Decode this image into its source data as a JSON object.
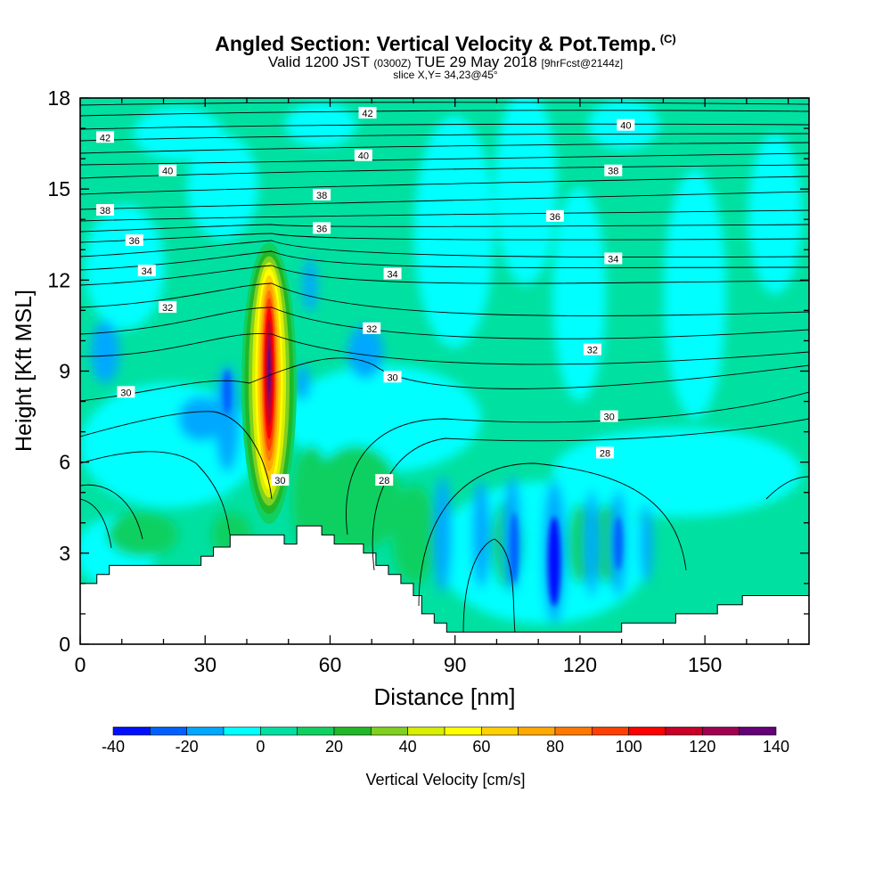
{
  "header": {
    "title": "Angled Section: Vertical Velocity & Pot.Temp.",
    "title_unit": "(C)",
    "valid_prefix": "Valid 1200 JST",
    "valid_utc": "(0300Z)",
    "valid_date": "TUE 29 May 2018",
    "forecast": "[9hrFcst@2144z]",
    "slice": "slice X,Y= 34,23@45°"
  },
  "chart_data": {
    "type": "heatmap",
    "xlabel": "Distance [nm]",
    "ylabel": "Height [Kft MSL]",
    "xlim": [
      0,
      175
    ],
    "ylim": [
      0,
      18
    ],
    "x_ticks": [
      "0",
      "30",
      "60",
      "90",
      "120",
      "150"
    ],
    "x_tick_values": [
      0,
      30,
      60,
      90,
      120,
      150
    ],
    "y_ticks": [
      "0",
      "3",
      "6",
      "9",
      "12",
      "15",
      "18"
    ],
    "y_tick_values": [
      0,
      3,
      6,
      9,
      12,
      15,
      18
    ],
    "colorbar": {
      "label": "Vertical Velocity [cm/s]",
      "labels": [
        "-40",
        "-20",
        "0",
        "20",
        "40",
        "60",
        "80",
        "100",
        "120",
        "140"
      ],
      "label_values": [
        -40,
        -20,
        0,
        20,
        40,
        60,
        80,
        100,
        120,
        140
      ],
      "min": -40,
      "max": 140,
      "step": 10,
      "colors": [
        "#0010ff",
        "#0060ff",
        "#00a8ff",
        "#00ffff",
        "#00e0a0",
        "#10d060",
        "#20b828",
        "#80d020",
        "#d8f000",
        "#ffff00",
        "#ffd000",
        "#ffa800",
        "#ff7800",
        "#ff4000",
        "#ff0000",
        "#c80028",
        "#a00050",
        "#640078"
      ]
    },
    "background_colors": {
      "updraft_light": "#00e0a0",
      "near_zero": "#00ffff"
    },
    "theta_contour_labels": [
      {
        "text": "42",
        "x": 69,
        "y": 17.5
      },
      {
        "text": "42",
        "x": 6,
        "y": 16.7
      },
      {
        "text": "40",
        "x": 68,
        "y": 16.1
      },
      {
        "text": "40",
        "x": 21,
        "y": 15.6
      },
      {
        "text": "40",
        "x": 131,
        "y": 17.1
      },
      {
        "text": "38",
        "x": 128,
        "y": 15.6
      },
      {
        "text": "38",
        "x": 58,
        "y": 14.8
      },
      {
        "text": "38",
        "x": 6,
        "y": 14.3
      },
      {
        "text": "36",
        "x": 58,
        "y": 13.7
      },
      {
        "text": "36",
        "x": 13,
        "y": 13.3
      },
      {
        "text": "36",
        "x": 114,
        "y": 14.1
      },
      {
        "text": "34",
        "x": 16,
        "y": 12.3
      },
      {
        "text": "34",
        "x": 75,
        "y": 12.2
      },
      {
        "text": "34",
        "x": 128,
        "y": 12.7
      },
      {
        "text": "32",
        "x": 21,
        "y": 11.1
      },
      {
        "text": "32",
        "x": 70,
        "y": 10.4
      },
      {
        "text": "32",
        "x": 123,
        "y": 9.7
      },
      {
        "text": "30",
        "x": 11,
        "y": 8.3
      },
      {
        "text": "30",
        "x": 75,
        "y": 8.8
      },
      {
        "text": "30",
        "x": 127,
        "y": 7.5
      },
      {
        "text": "30",
        "x": 48,
        "y": 5.4
      },
      {
        "text": "28",
        "x": 126,
        "y": 6.3
      },
      {
        "text": "28",
        "x": 73,
        "y": 5.4
      }
    ],
    "terrain_profile": [
      [
        0,
        0
      ],
      [
        0,
        2
      ],
      [
        4,
        2
      ],
      [
        4,
        2.3
      ],
      [
        7,
        2.3
      ],
      [
        7,
        2.6
      ],
      [
        29,
        2.6
      ],
      [
        29,
        2.9
      ],
      [
        32,
        2.9
      ],
      [
        32,
        3.2
      ],
      [
        36,
        3.2
      ],
      [
        36,
        3.6
      ],
      [
        49,
        3.6
      ],
      [
        49,
        3.3
      ],
      [
        52,
        3.3
      ],
      [
        52,
        3.9
      ],
      [
        58,
        3.9
      ],
      [
        58,
        3.6
      ],
      [
        61,
        3.6
      ],
      [
        61,
        3.3
      ],
      [
        68,
        3.3
      ],
      [
        68,
        3
      ],
      [
        71,
        3
      ],
      [
        71,
        2.6
      ],
      [
        74,
        2.6
      ],
      [
        74,
        2.3
      ],
      [
        77,
        2.3
      ],
      [
        77,
        2
      ],
      [
        80,
        2
      ],
      [
        80,
        1.6
      ],
      [
        82,
        1.6
      ],
      [
        82,
        1
      ],
      [
        85,
        1
      ],
      [
        85,
        0.7
      ],
      [
        88,
        0.7
      ],
      [
        88,
        0.4
      ],
      [
        130,
        0.4
      ],
      [
        130,
        0.7
      ],
      [
        143,
        0.7
      ],
      [
        143,
        1
      ],
      [
        153,
        1
      ],
      [
        153,
        1.3
      ],
      [
        159,
        1.3
      ],
      [
        159,
        1.6
      ],
      [
        175,
        1.6
      ],
      [
        175,
        0
      ]
    ]
  }
}
